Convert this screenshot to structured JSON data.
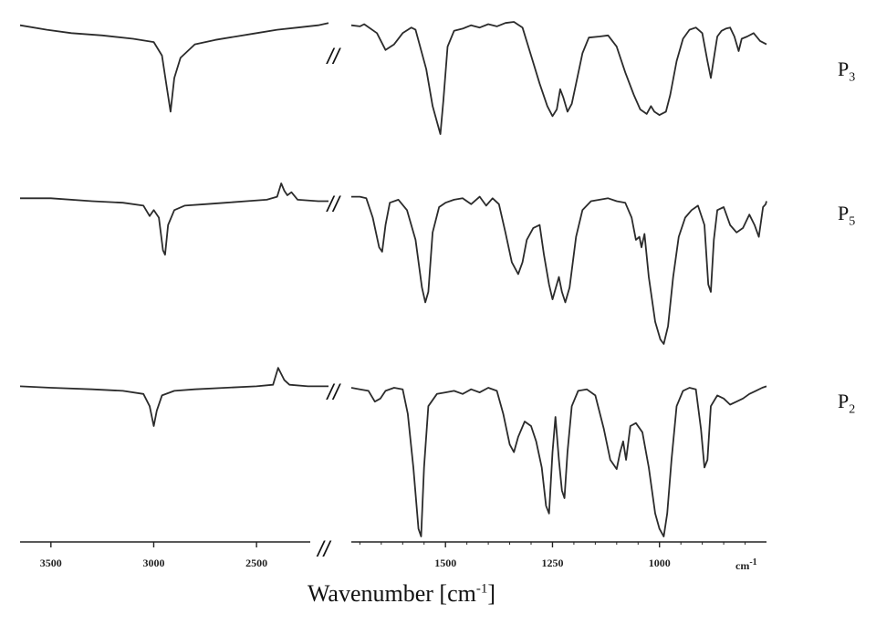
{
  "chart_data": {
    "type": "line",
    "title": "",
    "xlabel": "Wavenumber [cm-1]",
    "xlabel_main": "Wavenumber [cm",
    "xlabel_exp": "-1",
    "xlabel_end": "]",
    "ylabel": "",
    "axis_unit_label": "cm-1",
    "axis_unit_main": "cm",
    "axis_unit_exp": "-1",
    "x_reversed": true,
    "broken_axis": true,
    "break_mark": "//",
    "xlim_left_segment": [
      3650,
      2150
    ],
    "xlim_right_segment": [
      1720,
      750
    ],
    "ticks": [
      {
        "value": 3500,
        "label": "3500"
      },
      {
        "value": 3000,
        "label": "3000"
      },
      {
        "value": 2500,
        "label": "2500"
      },
      {
        "value": 1500,
        "label": "1500"
      },
      {
        "value": 1250,
        "label": "1250"
      },
      {
        "value": 1000,
        "label": "1000"
      }
    ],
    "line_color": "#2b2b2b",
    "series": [
      {
        "name": "P",
        "sub": "3",
        "left": [
          [
            3650,
            0.97
          ],
          [
            3520,
            0.93
          ],
          [
            3400,
            0.9
          ],
          [
            3250,
            0.88
          ],
          [
            3100,
            0.85
          ],
          [
            3000,
            0.82
          ],
          [
            2960,
            0.7
          ],
          [
            2935,
            0.4
          ],
          [
            2918,
            0.2
          ],
          [
            2900,
            0.5
          ],
          [
            2870,
            0.68
          ],
          [
            2800,
            0.8
          ],
          [
            2700,
            0.84
          ],
          [
            2600,
            0.87
          ],
          [
            2500,
            0.9
          ],
          [
            2400,
            0.93
          ],
          [
            2300,
            0.95
          ],
          [
            2200,
            0.97
          ],
          [
            2150,
            0.99
          ]
        ],
        "right": [
          [
            1720,
            0.97
          ],
          [
            1700,
            0.96
          ],
          [
            1690,
            0.98
          ],
          [
            1660,
            0.9
          ],
          [
            1640,
            0.75
          ],
          [
            1620,
            0.8
          ],
          [
            1600,
            0.9
          ],
          [
            1580,
            0.95
          ],
          [
            1570,
            0.93
          ],
          [
            1545,
            0.58
          ],
          [
            1530,
            0.25
          ],
          [
            1512,
            0.0
          ],
          [
            1505,
            0.3
          ],
          [
            1495,
            0.78
          ],
          [
            1480,
            0.92
          ],
          [
            1460,
            0.94
          ],
          [
            1440,
            0.97
          ],
          [
            1420,
            0.95
          ],
          [
            1400,
            0.98
          ],
          [
            1380,
            0.96
          ],
          [
            1360,
            0.99
          ],
          [
            1340,
            1.0
          ],
          [
            1320,
            0.95
          ],
          [
            1300,
            0.7
          ],
          [
            1280,
            0.45
          ],
          [
            1262,
            0.25
          ],
          [
            1250,
            0.16
          ],
          [
            1240,
            0.22
          ],
          [
            1232,
            0.4
          ],
          [
            1225,
            0.33
          ],
          [
            1215,
            0.2
          ],
          [
            1205,
            0.27
          ],
          [
            1195,
            0.45
          ],
          [
            1180,
            0.72
          ],
          [
            1165,
            0.86
          ],
          [
            1140,
            0.87
          ],
          [
            1120,
            0.88
          ],
          [
            1100,
            0.78
          ],
          [
            1080,
            0.55
          ],
          [
            1060,
            0.35
          ],
          [
            1045,
            0.22
          ],
          [
            1030,
            0.18
          ],
          [
            1020,
            0.25
          ],
          [
            1012,
            0.2
          ],
          [
            1000,
            0.17
          ],
          [
            985,
            0.2
          ],
          [
            975,
            0.35
          ],
          [
            960,
            0.65
          ],
          [
            945,
            0.85
          ],
          [
            930,
            0.93
          ],
          [
            915,
            0.95
          ],
          [
            900,
            0.9
          ],
          [
            888,
            0.65
          ],
          [
            880,
            0.5
          ],
          [
            872,
            0.7
          ],
          [
            865,
            0.87
          ],
          [
            855,
            0.92
          ],
          [
            845,
            0.94
          ],
          [
            835,
            0.95
          ],
          [
            825,
            0.87
          ],
          [
            815,
            0.74
          ],
          [
            808,
            0.85
          ],
          [
            795,
            0.87
          ],
          [
            780,
            0.9
          ],
          [
            765,
            0.83
          ],
          [
            750,
            0.8
          ]
        ]
      },
      {
        "name": "P",
        "sub": "5",
        "left": [
          [
            3650,
            0.98
          ],
          [
            3500,
            0.98
          ],
          [
            3300,
            0.96
          ],
          [
            3150,
            0.95
          ],
          [
            3050,
            0.93
          ],
          [
            3020,
            0.86
          ],
          [
            3000,
            0.9
          ],
          [
            2975,
            0.85
          ],
          [
            2955,
            0.63
          ],
          [
            2945,
            0.6
          ],
          [
            2930,
            0.8
          ],
          [
            2900,
            0.9
          ],
          [
            2850,
            0.93
          ],
          [
            2750,
            0.94
          ],
          [
            2650,
            0.95
          ],
          [
            2550,
            0.96
          ],
          [
            2450,
            0.97
          ],
          [
            2400,
            0.99
          ],
          [
            2380,
            1.08
          ],
          [
            2365,
            1.03
          ],
          [
            2350,
            1.0
          ],
          [
            2330,
            1.02
          ],
          [
            2300,
            0.97
          ],
          [
            2200,
            0.96
          ],
          [
            2150,
            0.96
          ]
        ],
        "right": [
          [
            1720,
            0.99
          ],
          [
            1700,
            0.99
          ],
          [
            1685,
            0.98
          ],
          [
            1670,
            0.85
          ],
          [
            1655,
            0.65
          ],
          [
            1648,
            0.62
          ],
          [
            1640,
            0.8
          ],
          [
            1630,
            0.95
          ],
          [
            1610,
            0.97
          ],
          [
            1590,
            0.9
          ],
          [
            1570,
            0.7
          ],
          [
            1555,
            0.38
          ],
          [
            1547,
            0.28
          ],
          [
            1540,
            0.35
          ],
          [
            1530,
            0.75
          ],
          [
            1515,
            0.92
          ],
          [
            1500,
            0.95
          ],
          [
            1480,
            0.97
          ],
          [
            1460,
            0.98
          ],
          [
            1440,
            0.94
          ],
          [
            1420,
            0.99
          ],
          [
            1405,
            0.93
          ],
          [
            1390,
            0.98
          ],
          [
            1375,
            0.94
          ],
          [
            1360,
            0.75
          ],
          [
            1345,
            0.55
          ],
          [
            1330,
            0.47
          ],
          [
            1320,
            0.55
          ],
          [
            1310,
            0.7
          ],
          [
            1295,
            0.78
          ],
          [
            1280,
            0.8
          ],
          [
            1270,
            0.6
          ],
          [
            1258,
            0.4
          ],
          [
            1250,
            0.3
          ],
          [
            1242,
            0.38
          ],
          [
            1235,
            0.45
          ],
          [
            1228,
            0.35
          ],
          [
            1220,
            0.28
          ],
          [
            1210,
            0.38
          ],
          [
            1195,
            0.72
          ],
          [
            1180,
            0.9
          ],
          [
            1160,
            0.96
          ],
          [
            1140,
            0.97
          ],
          [
            1120,
            0.98
          ],
          [
            1100,
            0.96
          ],
          [
            1080,
            0.95
          ],
          [
            1065,
            0.85
          ],
          [
            1055,
            0.7
          ],
          [
            1047,
            0.72
          ],
          [
            1042,
            0.65
          ],
          [
            1035,
            0.74
          ],
          [
            1025,
            0.45
          ],
          [
            1010,
            0.15
          ],
          [
            998,
            0.03
          ],
          [
            990,
            0.0
          ],
          [
            980,
            0.12
          ],
          [
            968,
            0.45
          ],
          [
            955,
            0.72
          ],
          [
            940,
            0.85
          ],
          [
            925,
            0.9
          ],
          [
            910,
            0.93
          ],
          [
            895,
            0.8
          ],
          [
            886,
            0.4
          ],
          [
            880,
            0.35
          ],
          [
            873,
            0.7
          ],
          [
            865,
            0.9
          ],
          [
            850,
            0.92
          ],
          [
            835,
            0.8
          ],
          [
            820,
            0.75
          ],
          [
            805,
            0.78
          ],
          [
            790,
            0.87
          ],
          [
            778,
            0.8
          ],
          [
            768,
            0.72
          ],
          [
            758,
            0.92
          ],
          [
            752,
            0.94
          ],
          [
            750,
            0.96
          ]
        ]
      },
      {
        "name": "P",
        "sub": "2",
        "left": [
          [
            3650,
            0.98
          ],
          [
            3500,
            0.97
          ],
          [
            3300,
            0.96
          ],
          [
            3150,
            0.95
          ],
          [
            3050,
            0.93
          ],
          [
            3020,
            0.85
          ],
          [
            3000,
            0.72
          ],
          [
            2985,
            0.82
          ],
          [
            2960,
            0.92
          ],
          [
            2900,
            0.95
          ],
          [
            2800,
            0.96
          ],
          [
            2650,
            0.97
          ],
          [
            2500,
            0.98
          ],
          [
            2420,
            0.99
          ],
          [
            2395,
            1.1
          ],
          [
            2380,
            1.06
          ],
          [
            2365,
            1.02
          ],
          [
            2340,
            0.99
          ],
          [
            2250,
            0.98
          ],
          [
            2150,
            0.98
          ]
        ],
        "right": [
          [
            1720,
            0.97
          ],
          [
            1700,
            0.96
          ],
          [
            1680,
            0.95
          ],
          [
            1665,
            0.88
          ],
          [
            1652,
            0.9
          ],
          [
            1640,
            0.95
          ],
          [
            1620,
            0.97
          ],
          [
            1600,
            0.96
          ],
          [
            1588,
            0.8
          ],
          [
            1575,
            0.45
          ],
          [
            1563,
            0.05
          ],
          [
            1557,
            0.0
          ],
          [
            1550,
            0.45
          ],
          [
            1540,
            0.85
          ],
          [
            1520,
            0.93
          ],
          [
            1500,
            0.94
          ],
          [
            1480,
            0.95
          ],
          [
            1460,
            0.93
          ],
          [
            1440,
            0.96
          ],
          [
            1420,
            0.94
          ],
          [
            1400,
            0.97
          ],
          [
            1380,
            0.95
          ],
          [
            1365,
            0.8
          ],
          [
            1350,
            0.6
          ],
          [
            1340,
            0.55
          ],
          [
            1330,
            0.65
          ],
          [
            1315,
            0.75
          ],
          [
            1300,
            0.72
          ],
          [
            1288,
            0.62
          ],
          [
            1275,
            0.45
          ],
          [
            1265,
            0.2
          ],
          [
            1258,
            0.15
          ],
          [
            1250,
            0.55
          ],
          [
            1243,
            0.78
          ],
          [
            1235,
            0.5
          ],
          [
            1228,
            0.3
          ],
          [
            1222,
            0.25
          ],
          [
            1215,
            0.55
          ],
          [
            1205,
            0.85
          ],
          [
            1190,
            0.95
          ],
          [
            1170,
            0.96
          ],
          [
            1150,
            0.92
          ],
          [
            1130,
            0.7
          ],
          [
            1115,
            0.5
          ],
          [
            1100,
            0.44
          ],
          [
            1092,
            0.55
          ],
          [
            1085,
            0.62
          ],
          [
            1078,
            0.5
          ],
          [
            1068,
            0.72
          ],
          [
            1055,
            0.74
          ],
          [
            1040,
            0.68
          ],
          [
            1025,
            0.45
          ],
          [
            1010,
            0.15
          ],
          [
            1000,
            0.05
          ],
          [
            990,
            0.0
          ],
          [
            982,
            0.15
          ],
          [
            972,
            0.5
          ],
          [
            960,
            0.85
          ],
          [
            945,
            0.95
          ],
          [
            930,
            0.97
          ],
          [
            915,
            0.96
          ],
          [
            903,
            0.7
          ],
          [
            895,
            0.45
          ],
          [
            888,
            0.5
          ],
          [
            880,
            0.85
          ],
          [
            865,
            0.92
          ],
          [
            850,
            0.9
          ],
          [
            835,
            0.86
          ],
          [
            820,
            0.88
          ],
          [
            805,
            0.9
          ],
          [
            790,
            0.93
          ],
          [
            775,
            0.95
          ],
          [
            760,
            0.97
          ],
          [
            750,
            0.98
          ]
        ]
      }
    ]
  }
}
